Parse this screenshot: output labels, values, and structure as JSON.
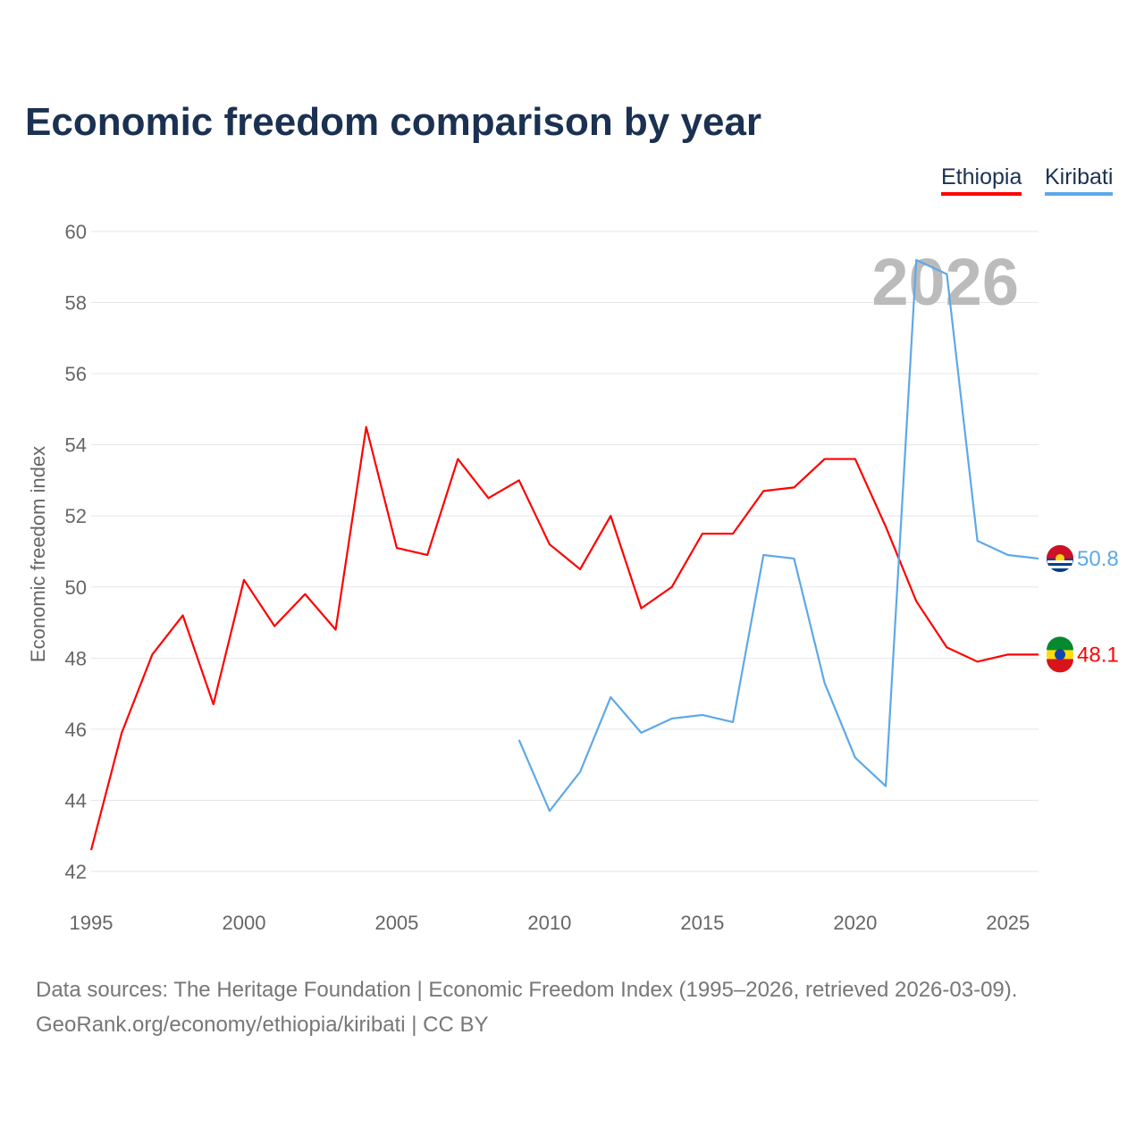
{
  "chart_data": {
    "type": "line",
    "title": "Economic freedom comparison by year",
    "xlabel": "",
    "ylabel": "Economic freedom index",
    "xlim": [
      1995,
      2026
    ],
    "ylim": [
      42,
      60
    ],
    "yticks": [
      "42",
      "44",
      "46",
      "48",
      "50",
      "52",
      "54",
      "56",
      "58",
      "60"
    ],
    "xticks": [
      "1995",
      "2000",
      "2005",
      "2010",
      "2015",
      "2020",
      "2025"
    ],
    "watermark_year": "2026",
    "legend_placement": "top-right",
    "grid": true,
    "series": [
      {
        "name": "Ethiopia",
        "color": "#ff0000",
        "end_label": "48.1",
        "x": [
          1995,
          1996,
          1997,
          1998,
          1999,
          2000,
          2001,
          2002,
          2003,
          2004,
          2005,
          2006,
          2007,
          2008,
          2009,
          2010,
          2011,
          2012,
          2013,
          2014,
          2015,
          2016,
          2017,
          2018,
          2019,
          2020,
          2021,
          2022,
          2023,
          2024,
          2025,
          2026
        ],
        "values": [
          42.6,
          45.9,
          48.1,
          49.2,
          46.7,
          50.2,
          48.9,
          49.8,
          48.8,
          54.5,
          51.1,
          50.9,
          53.6,
          52.5,
          53.0,
          51.2,
          50.5,
          52.0,
          49.4,
          50.0,
          51.5,
          51.5,
          52.7,
          52.8,
          53.6,
          53.6,
          51.7,
          49.6,
          48.3,
          47.9,
          48.1,
          48.1
        ]
      },
      {
        "name": "Kiribati",
        "color": "#5ea8e8",
        "end_label": "50.8",
        "x": [
          2009,
          2010,
          2011,
          2012,
          2013,
          2014,
          2015,
          2016,
          2017,
          2018,
          2019,
          2020,
          2021,
          2022,
          2023,
          2024,
          2025,
          2026
        ],
        "values": [
          45.7,
          43.7,
          44.8,
          46.9,
          45.9,
          46.3,
          46.4,
          46.2,
          50.9,
          50.8,
          47.3,
          45.2,
          44.4,
          59.2,
          58.8,
          51.3,
          50.9,
          50.8
        ]
      }
    ]
  },
  "footer": {
    "line1": "Data sources: The Heritage Foundation | Economic Freedom Index (1995–2026, retrieved 2026-03-09).",
    "line2": "GeoRank.org/economy/ethiopia/kiribati | CC BY"
  }
}
